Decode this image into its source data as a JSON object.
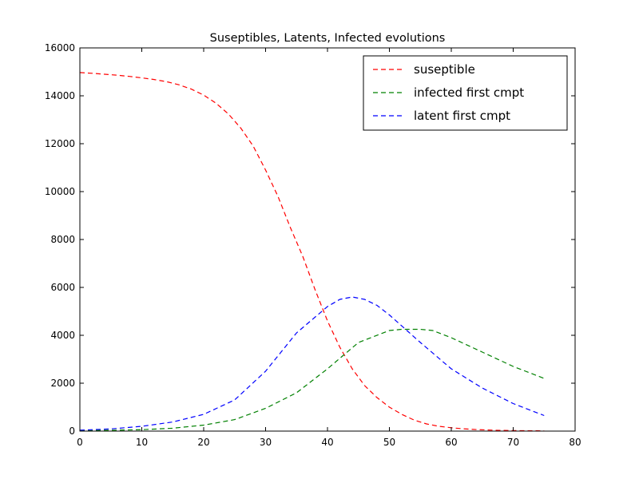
{
  "chart_data": {
    "type": "line",
    "title": "Suseptibles, Latents, Infected evolutions",
    "xlabel": "",
    "ylabel": "",
    "xlim": [
      0,
      80
    ],
    "ylim": [
      0,
      16000
    ],
    "xticks": [
      0,
      10,
      20,
      30,
      40,
      50,
      60,
      70,
      80
    ],
    "yticks": [
      0,
      2000,
      4000,
      6000,
      8000,
      10000,
      12000,
      14000,
      16000
    ],
    "grid": false,
    "legend_position": "top-right",
    "series": [
      {
        "name": "suseptible",
        "color": "#ff0000",
        "style": "dashed",
        "x": [
          0,
          2,
          4,
          6,
          8,
          10,
          12,
          14,
          16,
          18,
          20,
          22,
          24,
          26,
          28,
          30,
          32,
          34,
          36,
          38,
          40,
          42,
          44,
          46,
          48,
          50,
          52,
          54,
          56,
          58,
          60,
          62,
          64,
          66,
          68,
          70,
          72,
          74,
          75
        ],
        "y": [
          14970,
          14940,
          14900,
          14860,
          14810,
          14750,
          14680,
          14590,
          14460,
          14280,
          14030,
          13690,
          13240,
          12650,
          11900,
          10900,
          9800,
          8500,
          7300,
          5900,
          4600,
          3500,
          2600,
          1900,
          1400,
          1000,
          700,
          460,
          300,
          200,
          140,
          95,
          65,
          45,
          30,
          22,
          16,
          12,
          10
        ]
      },
      {
        "name": "infected first cmpt",
        "color": "#008000",
        "style": "dashed",
        "x": [
          0,
          5,
          10,
          15,
          20,
          25,
          30,
          35,
          40,
          45,
          50,
          52,
          55,
          57,
          60,
          65,
          70,
          75
        ],
        "y": [
          20,
          35,
          60,
          120,
          250,
          480,
          950,
          1600,
          2600,
          3700,
          4200,
          4250,
          4250,
          4200,
          3900,
          3300,
          2700,
          2200
        ]
      },
      {
        "name": "latent first cmpt",
        "color": "#0000ff",
        "style": "dashed",
        "x": [
          0,
          5,
          10,
          15,
          20,
          25,
          30,
          35,
          40,
          42,
          44,
          46,
          48,
          50,
          55,
          60,
          65,
          70,
          75
        ],
        "y": [
          40,
          90,
          200,
          380,
          700,
          1300,
          2500,
          4100,
          5200,
          5500,
          5600,
          5500,
          5250,
          4850,
          3700,
          2600,
          1800,
          1150,
          650
        ]
      }
    ]
  }
}
